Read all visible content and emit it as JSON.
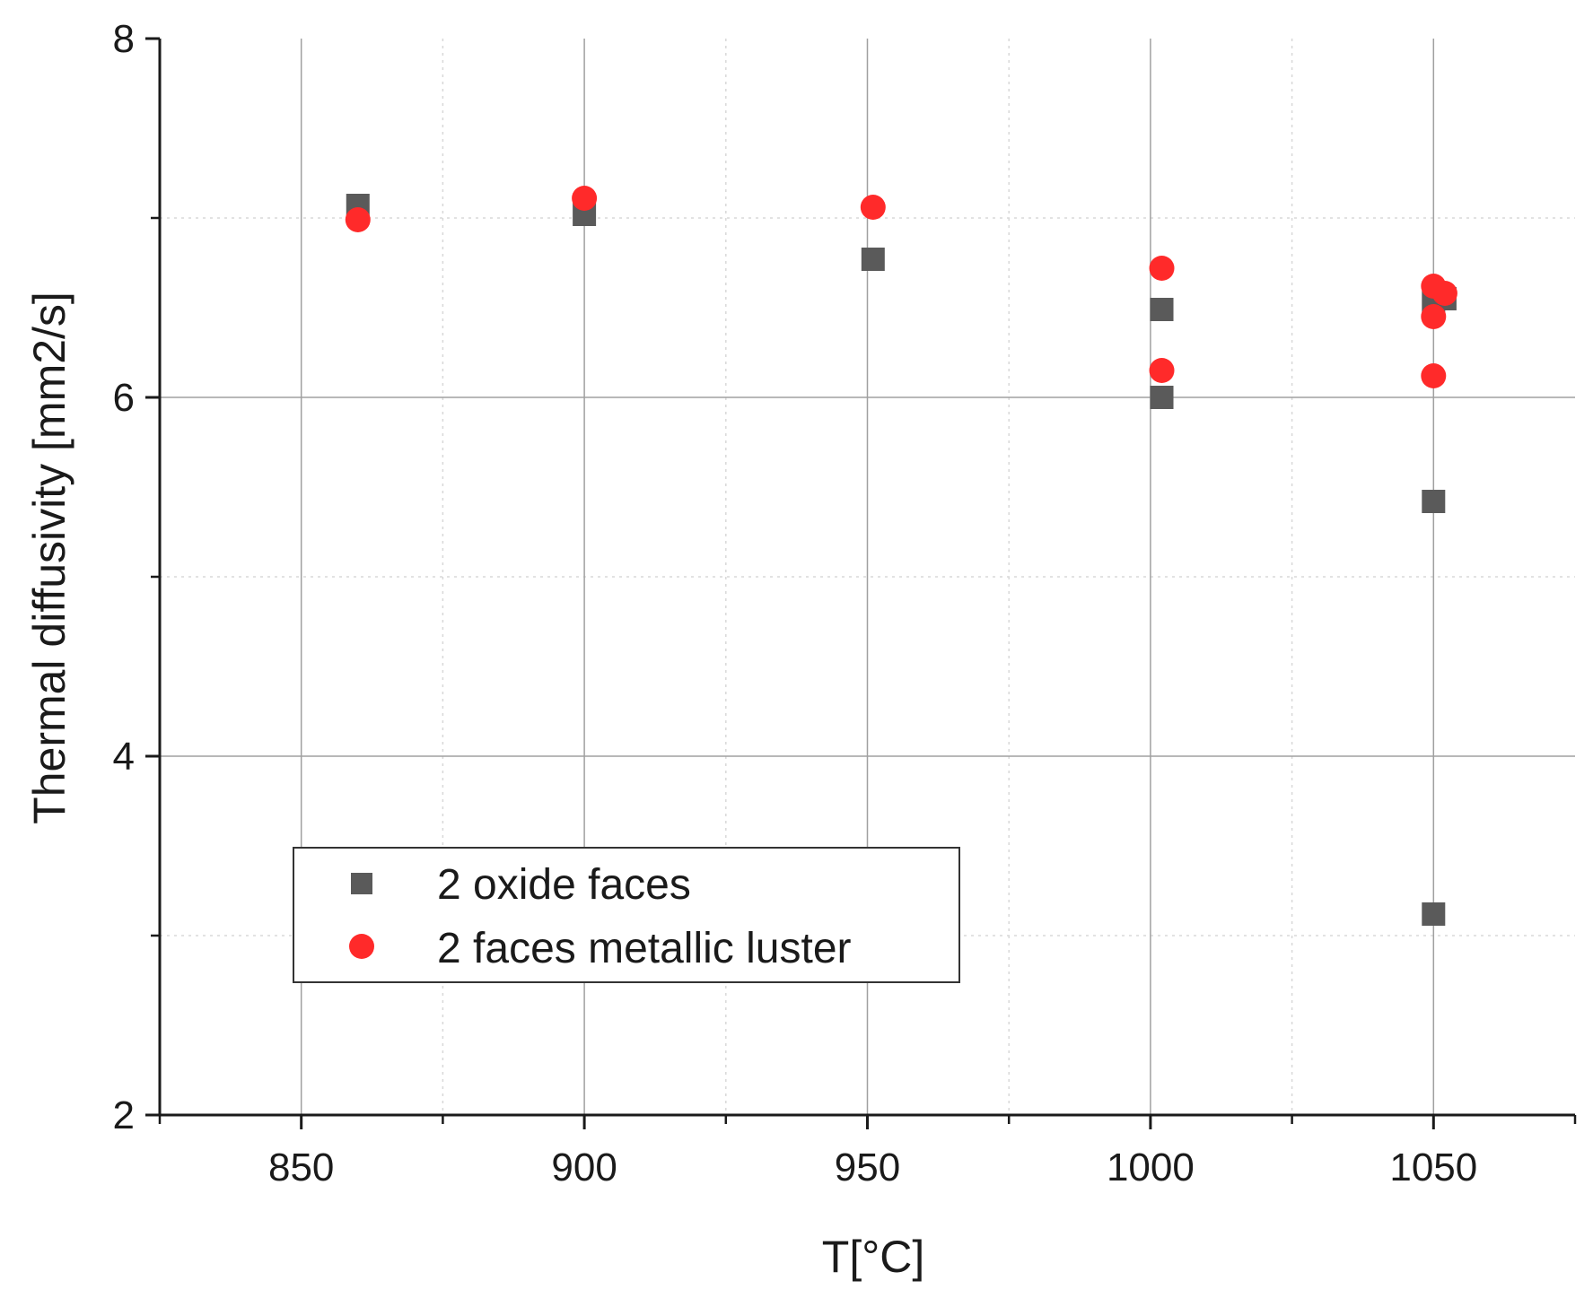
{
  "chart_data": {
    "type": "scatter",
    "title": "",
    "xlabel": "T[°C]",
    "ylabel": "Thermal diffusivity [mm2/s]",
    "xlim": [
      825,
      1075
    ],
    "ylim": [
      2,
      8
    ],
    "x_ticks": [
      850,
      900,
      950,
      1000,
      1050
    ],
    "x_tick_labels": [
      "850",
      "900",
      "950",
      "1000",
      "1050"
    ],
    "x_minor_ticks": [
      825,
      875,
      925,
      975,
      1025,
      1075
    ],
    "y_ticks": [
      2,
      4,
      6,
      8
    ],
    "y_tick_labels": [
      "2",
      "4",
      "6",
      "8"
    ],
    "y_minor_ticks": [
      3,
      5,
      7
    ],
    "grid": true,
    "legend_position": "lower-left",
    "series": [
      {
        "name": "2 oxide faces",
        "marker": "square",
        "color": "#5a5a5a",
        "points": [
          {
            "x": 860,
            "y": 7.07
          },
          {
            "x": 900,
            "y": 7.02
          },
          {
            "x": 951,
            "y": 6.77
          },
          {
            "x": 1002,
            "y": 6.49
          },
          {
            "x": 1002,
            "y": 6.0
          },
          {
            "x": 1050,
            "y": 6.53
          },
          {
            "x": 1052,
            "y": 6.55
          },
          {
            "x": 1050,
            "y": 5.42
          },
          {
            "x": 1050,
            "y": 3.12
          }
        ]
      },
      {
        "name": "2 faces metallic luster",
        "marker": "circle",
        "color": "#ff2a2a",
        "points": [
          {
            "x": 860,
            "y": 6.99
          },
          {
            "x": 900,
            "y": 7.11
          },
          {
            "x": 951,
            "y": 7.06
          },
          {
            "x": 1002,
            "y": 6.72
          },
          {
            "x": 1002,
            "y": 6.15
          },
          {
            "x": 1050,
            "y": 6.62
          },
          {
            "x": 1052,
            "y": 6.58
          },
          {
            "x": 1050,
            "y": 6.45
          },
          {
            "x": 1050,
            "y": 6.12
          }
        ]
      }
    ]
  },
  "colors": {
    "axis": "#1a1a1a",
    "major_grid": "#a0a0a0",
    "minor_grid": "#d8d8d8",
    "legend_border": "#333333"
  }
}
